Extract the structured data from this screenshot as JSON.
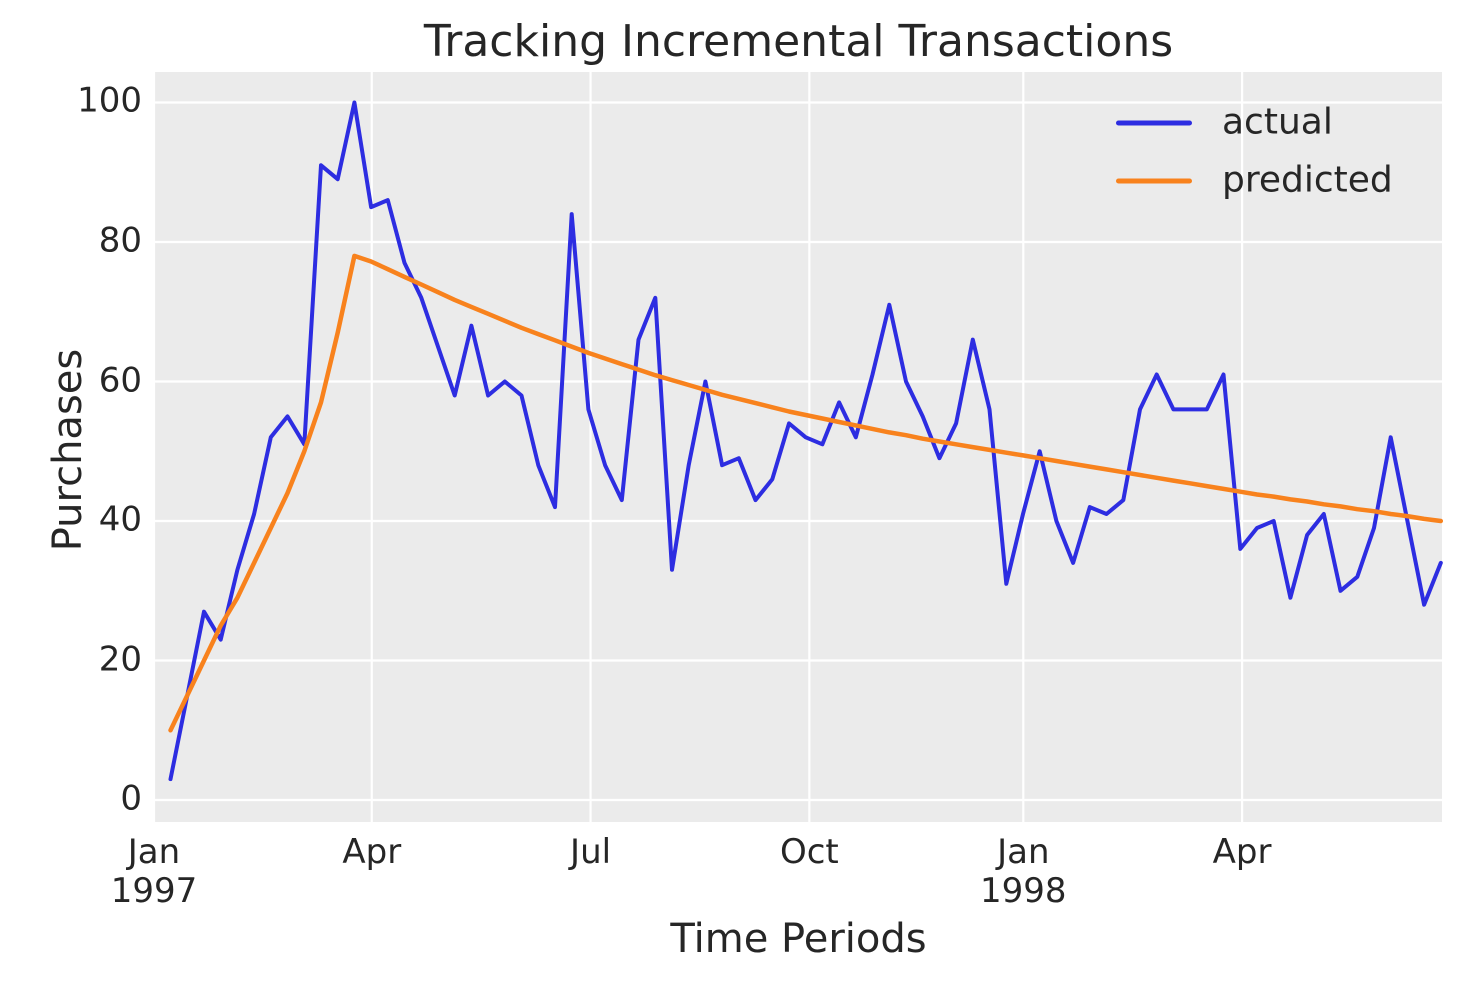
{
  "figure": {
    "title": "Tracking Incremental Transactions"
  },
  "chart_data": {
    "type": "line",
    "title": "Tracking Incremental Transactions",
    "xlabel": "Time Periods",
    "ylabel": "Purchases",
    "x_description": "weekly time periods, Jan 1997 through late Jun 1998 (77 weekly points, week index 0-76)",
    "grid": true,
    "plot_bg_color": "#ebebeb",
    "grid_color": "#ffffff",
    "text_color": "#262626",
    "xlim_weeks": [
      -0.93,
      76.07
    ],
    "ylim": [
      -3.15,
      104.37
    ],
    "y_ticks": [
      0,
      20,
      40,
      60,
      80,
      100
    ],
    "x_ticks": [
      {
        "label": "Jan",
        "sublabel": "1997",
        "week": -0.99
      },
      {
        "label": "Apr",
        "sublabel": "",
        "week": 12.04
      },
      {
        "label": "Jul",
        "sublabel": "",
        "week": 25.13
      },
      {
        "label": "Oct",
        "sublabel": "",
        "week": 38.22
      },
      {
        "label": "Jan",
        "sublabel": "1998",
        "week": 51.02
      },
      {
        "label": "Apr",
        "sublabel": "",
        "week": 64.11
      }
    ],
    "legend": {
      "position": "upper right",
      "entries": [
        {
          "label": "actual",
          "color": "#2d2de1"
        },
        {
          "label": "predicted",
          "color": "#f8821d"
        }
      ]
    },
    "series": [
      {
        "name": "actual",
        "color": "#2d2de1",
        "values": [
          3,
          15,
          27,
          23,
          33,
          41,
          52,
          55,
          51,
          91,
          89,
          100,
          85,
          86,
          77,
          72,
          65,
          58,
          68,
          58,
          60,
          58,
          48,
          42,
          84,
          56,
          48,
          43,
          66,
          72,
          33,
          48,
          60,
          48,
          49,
          43,
          46,
          54,
          52,
          51,
          57,
          52,
          61,
          71,
          60,
          55,
          49,
          54,
          66,
          56,
          31,
          41,
          50,
          40,
          34,
          42,
          41,
          43,
          56,
          61,
          56,
          56,
          56,
          61,
          36,
          39,
          40,
          29,
          38,
          41,
          30,
          32,
          39,
          52,
          40,
          28,
          34
        ]
      },
      {
        "name": "predicted",
        "color": "#f8821d",
        "values": [
          10,
          15,
          20,
          25,
          29,
          34,
          39,
          44,
          50,
          57,
          67,
          78,
          77.2,
          76.1,
          75,
          73.9,
          72.8,
          71.7,
          70.7,
          69.7,
          68.7,
          67.7,
          66.8,
          65.9,
          65,
          64.1,
          63.3,
          62.5,
          61.7,
          60.9,
          60.2,
          59.5,
          58.8,
          58.1,
          57.5,
          56.9,
          56.3,
          55.7,
          55.2,
          54.7,
          54.2,
          53.7,
          53.2,
          52.7,
          52.3,
          51.8,
          51.4,
          51,
          50.6,
          50.2,
          49.8,
          49.4,
          49,
          48.6,
          48.2,
          47.8,
          47.4,
          47,
          46.6,
          46.2,
          45.8,
          45.4,
          45,
          44.6,
          44.2,
          43.8,
          43.5,
          43.1,
          42.8,
          42.4,
          42.1,
          41.7,
          41.4,
          41,
          40.7,
          40.3,
          40
        ]
      }
    ]
  }
}
